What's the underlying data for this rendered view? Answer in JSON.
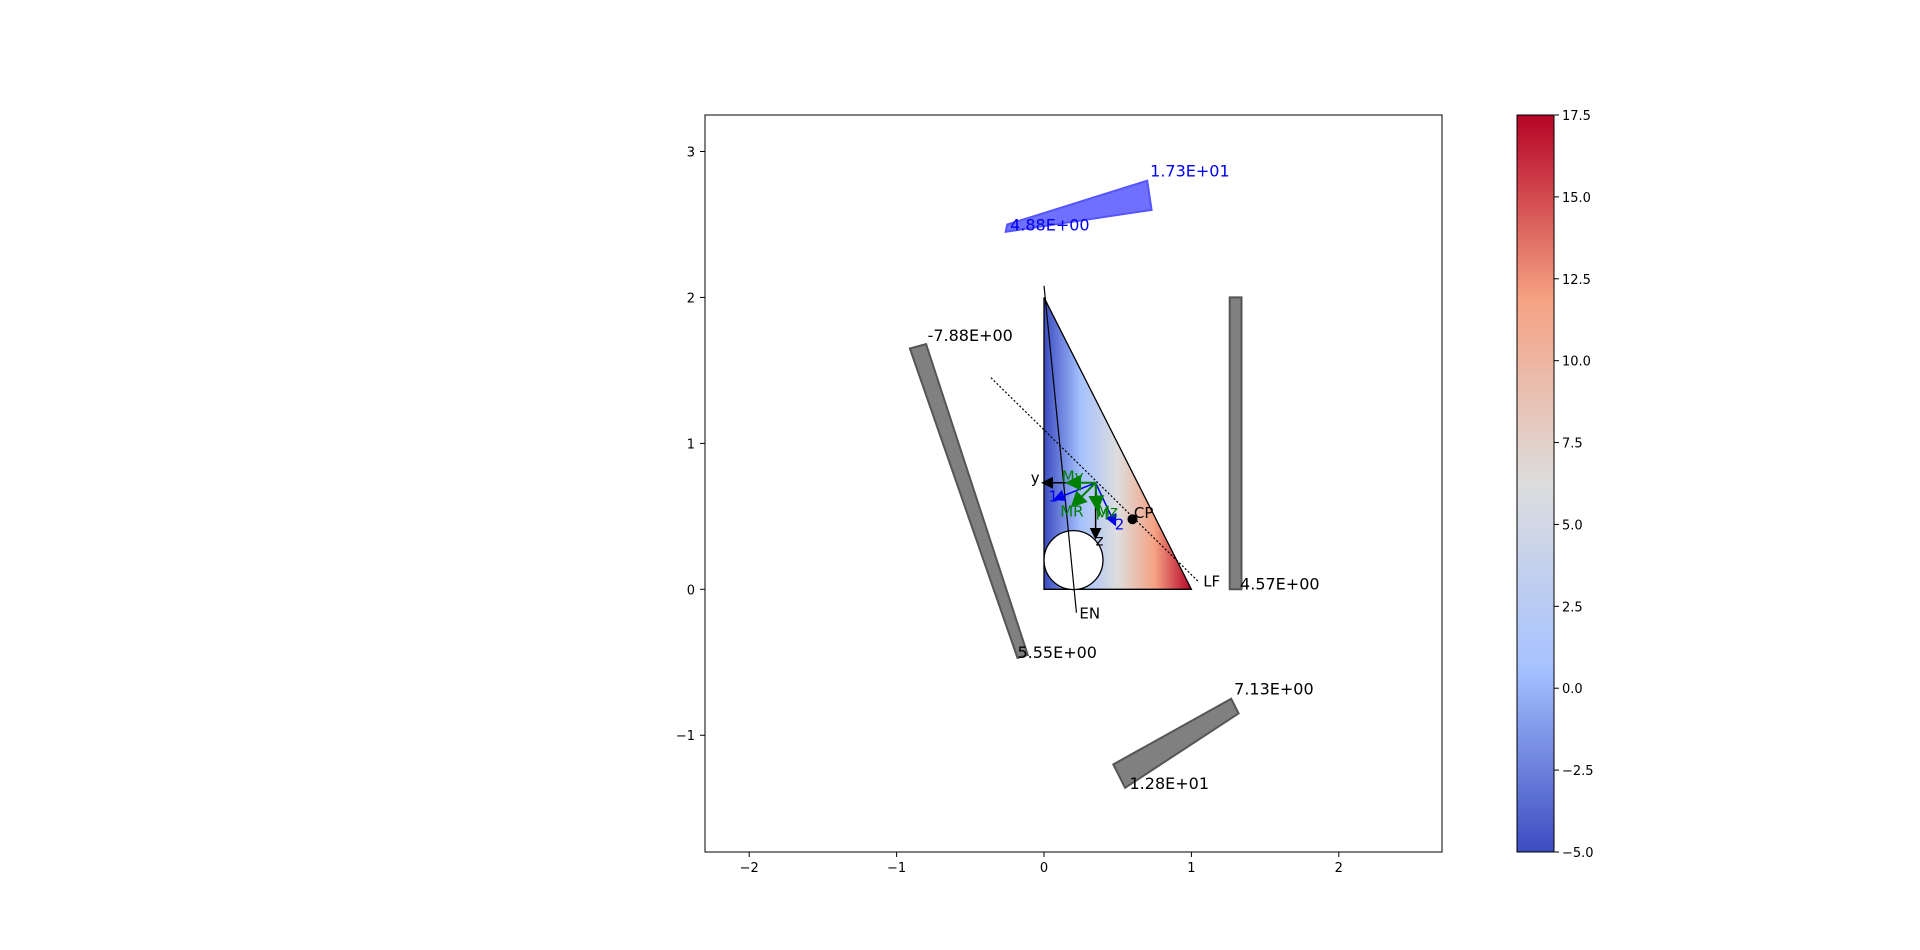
{
  "chart_data": {
    "type": "section-stress",
    "xlim": [
      -2.3,
      2.7
    ],
    "ylim": [
      -1.8,
      3.25
    ],
    "xticks": [
      "−2",
      "−1",
      "0",
      "1",
      "2"
    ],
    "yticks": [
      "−1",
      "0",
      "1",
      "2",
      "3"
    ],
    "section_triangle": [
      [
        0,
        0
      ],
      [
        1.0,
        0
      ],
      [
        0,
        2.0
      ]
    ],
    "hole": {
      "center": [
        0.2,
        0.2
      ],
      "radius": 0.2
    },
    "stress_range": [
      -5.0,
      17.5
    ],
    "colorbar": {
      "ticks": [
        "−5.0",
        "−2.5",
        "0.0",
        "2.5",
        "5.0",
        "7.5",
        "10.0",
        "12.5",
        "15.0",
        "17.5"
      ],
      "colors": [
        "#3b4cc0",
        "#a6c2ff",
        "#dddddd",
        "#f6a283",
        "#b40426"
      ]
    },
    "stress_diagrams": [
      {
        "color": "#4a4aff",
        "start_label": "4.88E+00",
        "end_label": "1.73E+01",
        "start_value": 4.88,
        "end_value": 17.3
      },
      {
        "color": "#555555",
        "start_label": "-7.88E+00",
        "end_label": "5.55E+00",
        "start_value": -7.88,
        "end_value": 5.55
      },
      {
        "color": "#555555",
        "start_label": "4.57E+00",
        "start_value": 4.57
      },
      {
        "color": "#555555",
        "start_label": "7.13E+00",
        "end_label": "1.28E+01",
        "start_value": 7.13,
        "end_value": 12.8
      }
    ],
    "annotations": {
      "cp": "CP",
      "lf": "LF",
      "en": "EN",
      "y_axis": "y",
      "z_axis": "z",
      "principal_1": "1",
      "principal_2": "2",
      "my": "My",
      "mz": "Mz",
      "mr": "MR",
      "mt": "M"
    },
    "cp_point": [
      0.6,
      0.48
    ]
  }
}
